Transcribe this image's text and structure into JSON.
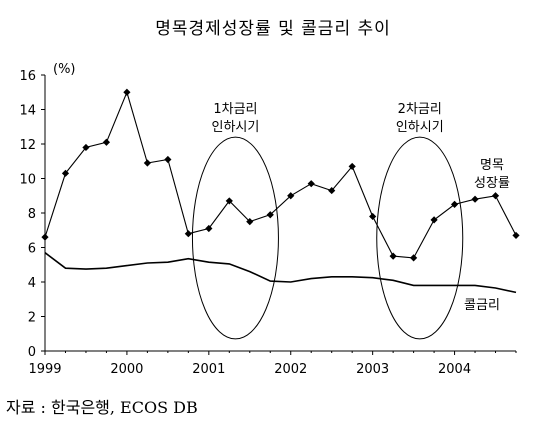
{
  "chart_data": {
    "type": "line",
    "title": "명목경제성장률 및 콜금리 추이",
    "y_unit": "(%)",
    "ylim": [
      0,
      16
    ],
    "y_ticks": [
      0,
      2,
      4,
      6,
      8,
      10,
      12,
      14,
      16
    ],
    "xlim": [
      1999.0,
      2004.75
    ],
    "x_tick_labels": [
      "1999",
      "2000",
      "2001",
      "2002",
      "2003",
      "2004"
    ],
    "x_tick_values": [
      1999,
      2000,
      2001,
      2002,
      2003,
      2004
    ],
    "grid": false,
    "series": [
      {
        "name": "명목 성장률",
        "name_lines": [
          "명목",
          "성장률"
        ],
        "marker": "diamond",
        "x": [
          1999.0,
          1999.25,
          1999.5,
          1999.75,
          2000.0,
          2000.25,
          2000.5,
          2000.75,
          2001.0,
          2001.25,
          2001.5,
          2001.75,
          2002.0,
          2002.25,
          2002.5,
          2002.75,
          2003.0,
          2003.25,
          2003.5,
          2003.75,
          2004.0,
          2004.25,
          2004.5,
          2004.75
        ],
        "values": [
          6.6,
          10.3,
          11.8,
          12.1,
          15.0,
          10.9,
          11.1,
          6.8,
          7.1,
          8.7,
          7.5,
          7.9,
          9.0,
          9.7,
          9.3,
          10.7,
          7.8,
          5.5,
          5.4,
          7.6,
          8.5,
          8.8,
          9.0,
          6.7
        ]
      },
      {
        "name": "콜금리",
        "marker": "none",
        "x": [
          1999.0,
          1999.25,
          1999.5,
          1999.75,
          2000.0,
          2000.25,
          2000.5,
          2000.75,
          2001.0,
          2001.25,
          2001.5,
          2001.75,
          2002.0,
          2002.25,
          2002.5,
          2002.75,
          2003.0,
          2003.25,
          2003.5,
          2003.75,
          2004.0,
          2004.25,
          2004.5,
          2004.75
        ],
        "values": [
          5.7,
          4.8,
          4.75,
          4.8,
          4.95,
          5.1,
          5.15,
          5.35,
          5.15,
          5.05,
          4.6,
          4.05,
          4.0,
          4.2,
          4.3,
          4.3,
          4.25,
          4.1,
          3.8,
          3.8,
          3.8,
          3.8,
          3.65,
          3.4
        ]
      }
    ],
    "annotations": [
      {
        "lines": [
          "1차금리",
          "인하시기"
        ],
        "x_range": [
          2000.8,
          2001.85
        ],
        "y_range": [
          0.7,
          12.4
        ]
      },
      {
        "lines": [
          "2차금리",
          "인하시기"
        ],
        "x_range": [
          2003.05,
          2004.1
        ],
        "y_range": [
          0.7,
          12.4
        ]
      }
    ]
  },
  "source": "자료 : 한국은행, ECOS DB"
}
